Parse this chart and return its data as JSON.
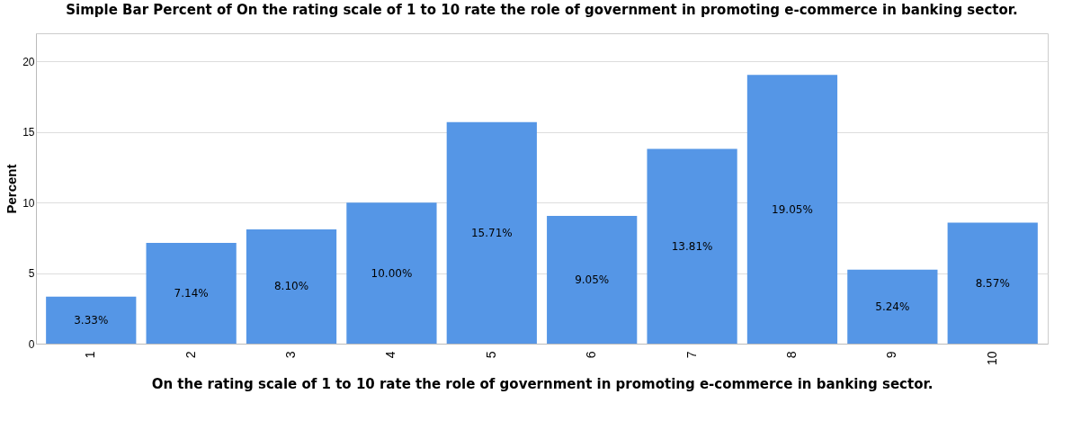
{
  "chart_data": {
    "type": "bar",
    "title": "Simple Bar Percent of On the rating scale of 1 to 10 rate the role of government in promoting e-commerce in banking sector.",
    "xlabel": "On the rating scale of 1 to 10 rate the role of government in promoting e-commerce in banking sector.",
    "ylabel": "Percent",
    "categories": [
      "1",
      "2",
      "3",
      "4",
      "5",
      "6",
      "7",
      "8",
      "9",
      "10"
    ],
    "values": [
      3.33,
      7.14,
      8.1,
      10.0,
      15.71,
      9.05,
      13.81,
      19.05,
      5.24,
      8.57
    ],
    "value_labels": [
      "3.33%",
      "7.14%",
      "8.10%",
      "10.00%",
      "15.71%",
      "9.05%",
      "13.81%",
      "19.05%",
      "5.24%",
      "8.57%"
    ],
    "color": "#5596e6",
    "ylim": [
      0,
      22
    ],
    "yticks": [
      0,
      5,
      10,
      15,
      20
    ],
    "grid": "y"
  }
}
